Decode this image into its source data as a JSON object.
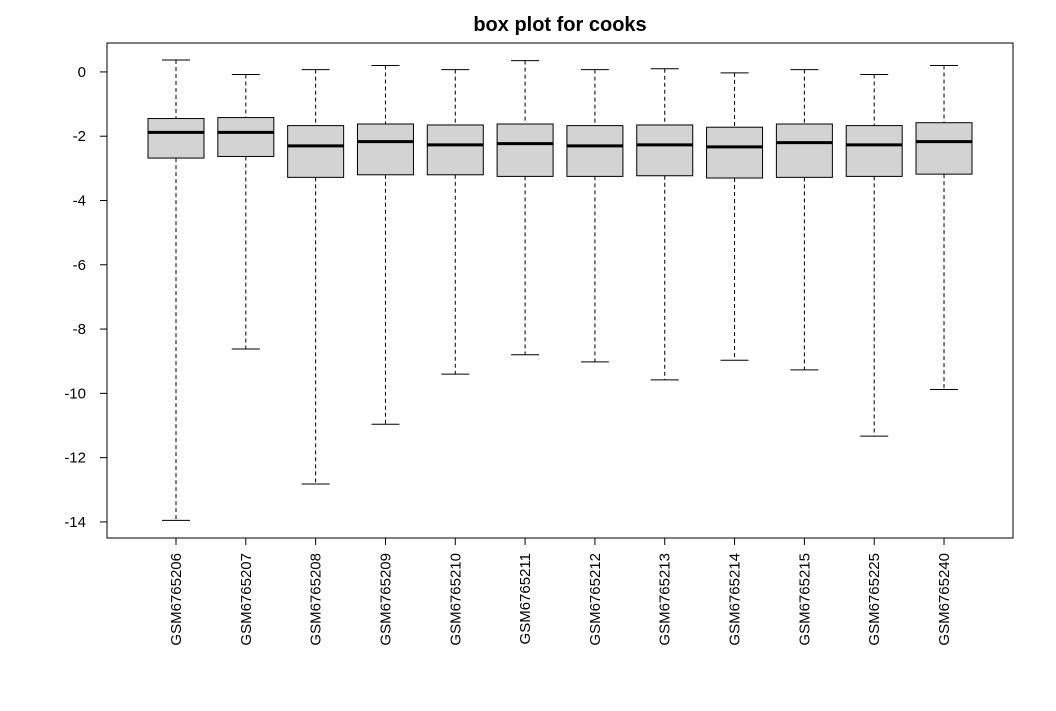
{
  "chart_data": {
    "type": "box",
    "title": "box plot for cooks",
    "xlabel": "",
    "ylabel": "",
    "ylim": [
      -14.5,
      0.9
    ],
    "yticks": [
      0,
      -2,
      -4,
      -6,
      -8,
      -10,
      -12,
      -14
    ],
    "categories": [
      "GSM6765206",
      "GSM6765207",
      "GSM6765208",
      "GSM6765209",
      "GSM6765210",
      "GSM6765211",
      "GSM6765212",
      "GSM6765213",
      "GSM6765214",
      "GSM6765215",
      "GSM6765225",
      "GSM6765240"
    ],
    "boxes": [
      {
        "min": -13.95,
        "q1": -2.68,
        "median": -1.88,
        "q3": -1.45,
        "max": 0.37
      },
      {
        "min": -8.62,
        "q1": -2.63,
        "median": -1.88,
        "q3": -1.42,
        "max": -0.08
      },
      {
        "min": -12.82,
        "q1": -3.28,
        "median": -2.3,
        "q3": -1.67,
        "max": 0.07
      },
      {
        "min": -10.96,
        "q1": -3.2,
        "median": -2.17,
        "q3": -1.62,
        "max": 0.2
      },
      {
        "min": -9.4,
        "q1": -3.2,
        "median": -2.27,
        "q3": -1.65,
        "max": 0.07
      },
      {
        "min": -8.8,
        "q1": -3.25,
        "median": -2.23,
        "q3": -1.62,
        "max": 0.35
      },
      {
        "min": -9.02,
        "q1": -3.25,
        "median": -2.3,
        "q3": -1.67,
        "max": 0.07
      },
      {
        "min": -9.58,
        "q1": -3.23,
        "median": -2.27,
        "q3": -1.65,
        "max": 0.1
      },
      {
        "min": -8.97,
        "q1": -3.3,
        "median": -2.33,
        "q3": -1.72,
        "max": -0.03
      },
      {
        "min": -9.27,
        "q1": -3.28,
        "median": -2.2,
        "q3": -1.62,
        "max": 0.07
      },
      {
        "min": -11.33,
        "q1": -3.25,
        "median": -2.27,
        "q3": -1.67,
        "max": -0.08
      },
      {
        "min": -9.88,
        "q1": -3.18,
        "median": -2.17,
        "q3": -1.58,
        "max": 0.2
      }
    ],
    "grid": false,
    "box_fill": "#d3d3d3"
  }
}
